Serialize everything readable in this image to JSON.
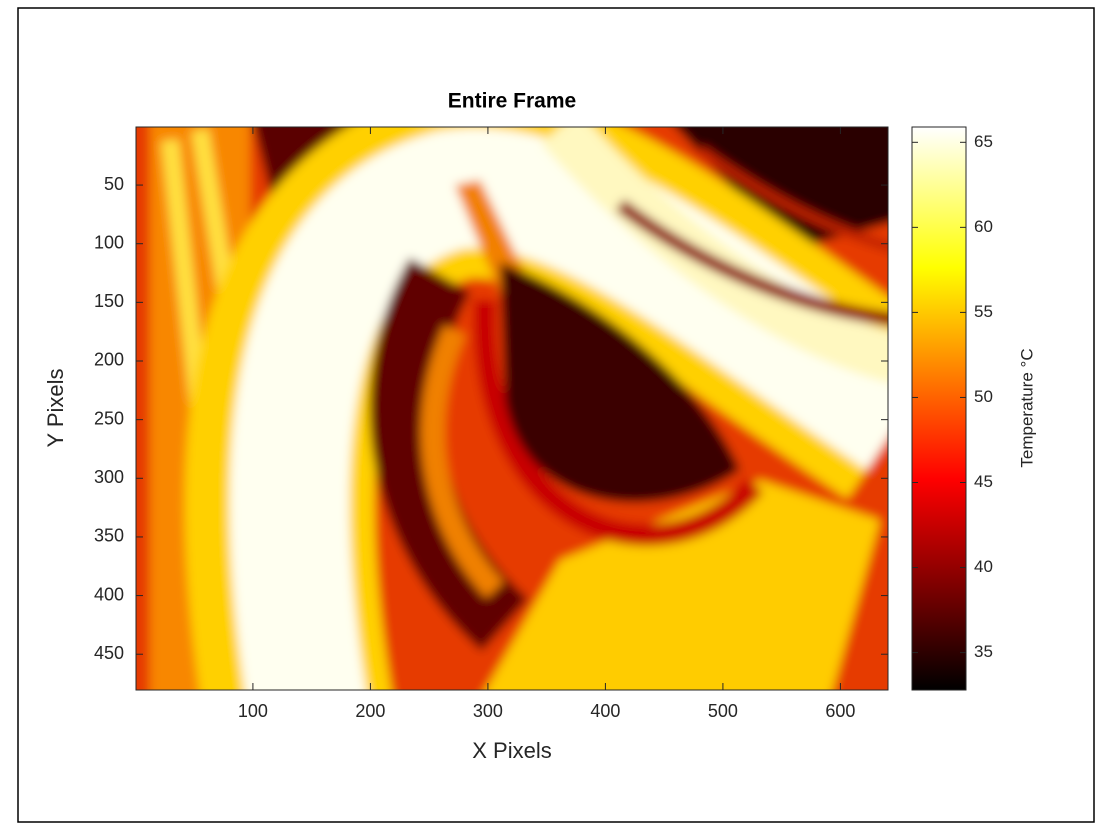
{
  "chart_data": {
    "type": "heatmap",
    "title": "Entire Frame",
    "x_label": "X Pixels",
    "y_label": "Y Pixels",
    "xlim": [
      0.5,
      640.5
    ],
    "ylim": [
      0.5,
      480.5
    ],
    "y_reversed": true,
    "xticks": [
      100,
      200,
      300,
      400,
      500,
      600
    ],
    "yticks": [
      50,
      100,
      150,
      200,
      250,
      300,
      350,
      400,
      450
    ],
    "colorbar": {
      "label": "Temperature °C",
      "clim": [
        32.8,
        65.9
      ],
      "ticks": [
        35,
        40,
        45,
        50,
        55,
        60,
        65
      ],
      "colormap": "hot"
    }
  }
}
